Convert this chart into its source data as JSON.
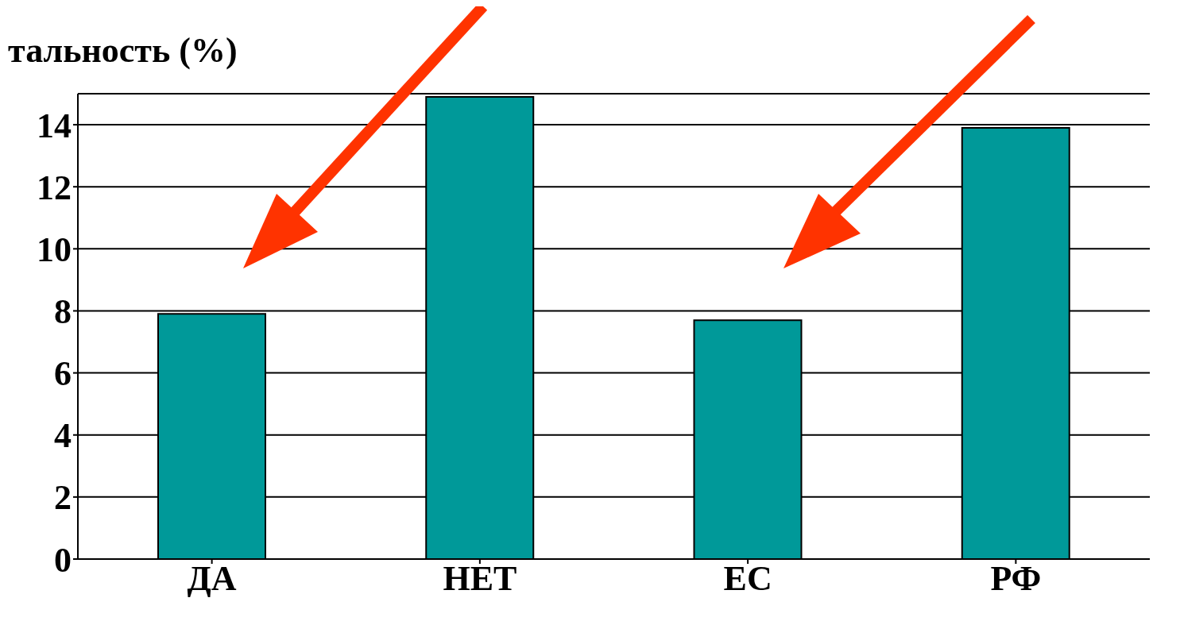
{
  "chart_data": {
    "type": "bar",
    "ylabel": "тальность (%)",
    "categories": [
      "ДА",
      "НЕТ",
      "ЕС",
      "РФ"
    ],
    "values": [
      7.9,
      14.9,
      7.7,
      13.9
    ],
    "color": "#009999",
    "ylim": [
      0,
      15
    ],
    "yticks": [
      0,
      2,
      4,
      6,
      8,
      10,
      12,
      14
    ],
    "grid": "y",
    "legend": false
  }
}
